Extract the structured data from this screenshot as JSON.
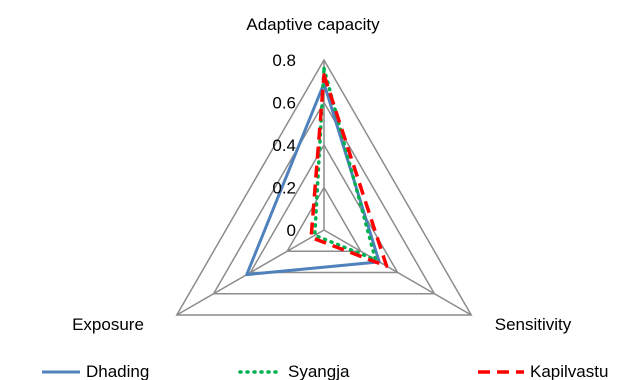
{
  "chart_data": {
    "type": "radar",
    "axes": [
      "Adaptive capacity",
      "Sensitivity",
      "Exposure"
    ],
    "ticks": [
      "0",
      "0.2",
      "0.4",
      "0.6",
      "0.8"
    ],
    "tick_values": [
      0,
      0.2,
      0.4,
      0.6,
      0.8
    ],
    "range": [
      0,
      0.8
    ],
    "grid": true,
    "legend_position": "bottom",
    "series": [
      {
        "name": "Dhading",
        "values": [
          0.69,
          0.3,
          0.42
        ],
        "color": "#4f81bd",
        "dash": "solid"
      },
      {
        "name": "Syangja",
        "values": [
          0.76,
          0.28,
          0.05
        ],
        "color": "#00b050",
        "dash": "dotted"
      },
      {
        "name": "Kapilvastu",
        "values": [
          0.73,
          0.34,
          0.07
        ],
        "color": "#ff0000",
        "dash": "dashed"
      }
    ]
  }
}
